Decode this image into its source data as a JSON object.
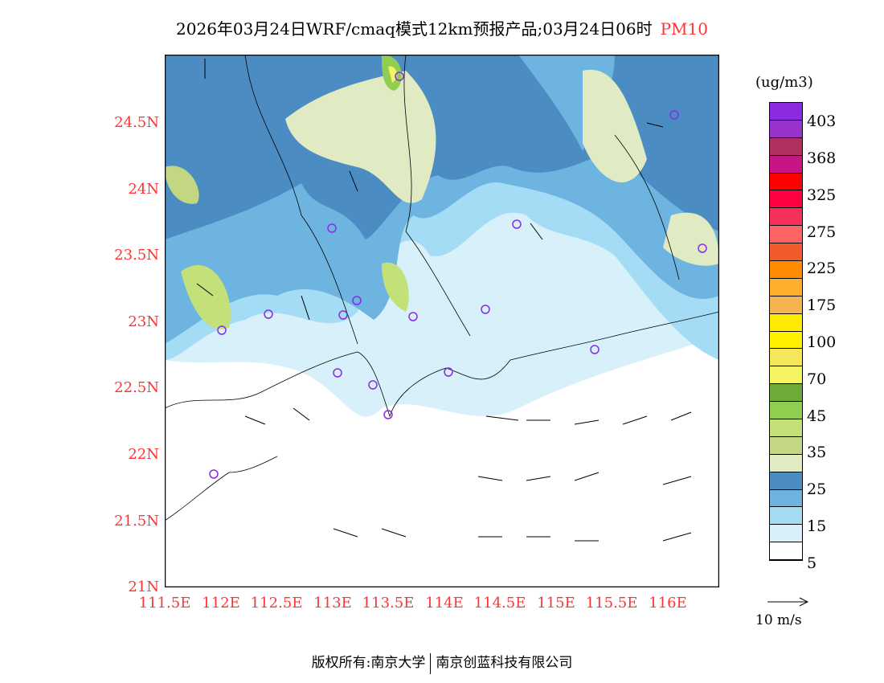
{
  "title": {
    "text": "2026年03月24日WRF/cmaq模式12km预报产品;03月24日06时",
    "pollutant": "PM10"
  },
  "map": {
    "y_ticks": [
      "24.5N",
      "24N",
      "23.5N",
      "23N",
      "22.5N",
      "22N",
      "21.5N",
      "21N"
    ],
    "x_ticks": [
      "111.5E",
      "112E",
      "112.5E",
      "113E",
      "113.5E",
      "114E",
      "114.5E",
      "115E",
      "115.5E",
      "116E"
    ]
  },
  "legend": {
    "unit": "(ug/m3)",
    "colors": [
      "#8a2be2",
      "#9932cc",
      "#b03060",
      "#c71585",
      "#ff0000",
      "#ff0040",
      "#f5305a",
      "#ff6464",
      "#f05a2d",
      "#ff8c00",
      "#ffae2d",
      "#f5b450",
      "#ffea00",
      "#fff000",
      "#f5e65a",
      "#f5f564",
      "#6eaa37",
      "#91cd50",
      "#c3e178",
      "#c3d782",
      "#e1ebc3",
      "#4b8cc3",
      "#6eb4e1",
      "#a5dcf5",
      "#d7f0fa",
      "#ffffff"
    ],
    "labels": [
      "403",
      "368",
      "325",
      "275",
      "225",
      "175",
      "100",
      "70",
      "45",
      "35",
      "25",
      "15",
      "5"
    ],
    "wind_scale": "10 m/s"
  },
  "footer": {
    "left": "版权所有:南京大学",
    "right": "南京创蓝科技有限公司"
  }
}
